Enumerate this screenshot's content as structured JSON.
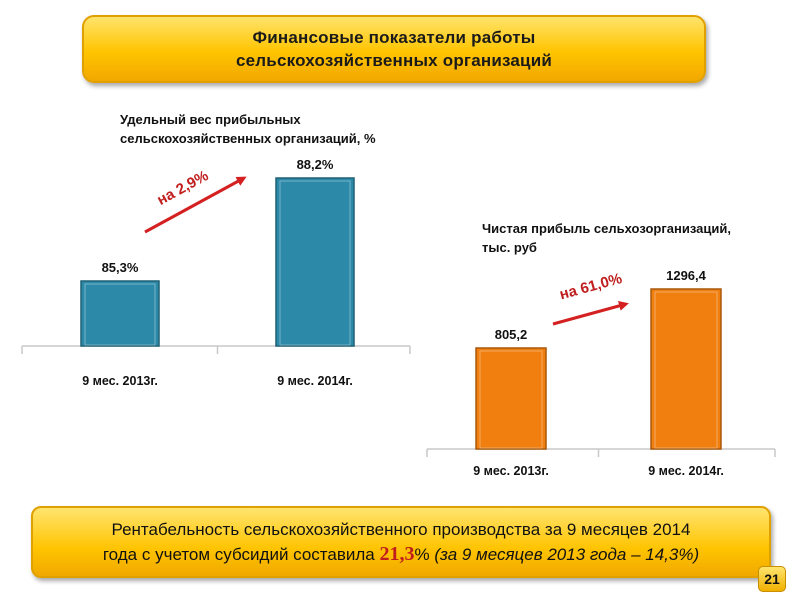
{
  "header": {
    "title_line1": "Финансовые показатели работы",
    "title_line2": "сельскохозяйственных организаций"
  },
  "chart_data": [
    {
      "type": "bar",
      "title": "Удельный вес прибыльных сельскохозяйственных организаций, %",
      "title_lines": [
        "Удельный вес прибыльных",
        "сельскохозяйственных организаций, %"
      ],
      "categories": [
        "9 мес. 2013г.",
        "9 мес. 2014г."
      ],
      "values": [
        85.3,
        88.2
      ],
      "data_labels": [
        "85,3%",
        "88,2%"
      ],
      "annotation": "на 2,9%",
      "color": "#2c8aa8",
      "ylim": [
        80,
        90
      ]
    },
    {
      "type": "bar",
      "title": "Чистая прибыль сельхозорганизаций, тыс. руб",
      "title_lines": [
        "Чистая прибыль сельхозорганизаций,",
        "тыс. руб"
      ],
      "categories": [
        "9 мес. 2013г.",
        "9 мес. 2014г."
      ],
      "values": [
        805.2,
        1296.4
      ],
      "data_labels": [
        "805,2",
        "1296,4"
      ],
      "annotation": "на 61,0%",
      "color": "#f07f10",
      "ylim": [
        0,
        1400
      ]
    }
  ],
  "summary": {
    "part1": "Рентабельность сельскохозяйственного производства за 9 месяцев 2014",
    "part2": "года с учетом субсидий составила ",
    "value": "21,3",
    "part3": "% ",
    "part4": "(за 9 месяцев 2013 года – 14,3%)"
  },
  "page_number": "21",
  "colors": {
    "banner": "#ffc400",
    "arrow": "#d42020",
    "annotation": "#c01d1d"
  }
}
